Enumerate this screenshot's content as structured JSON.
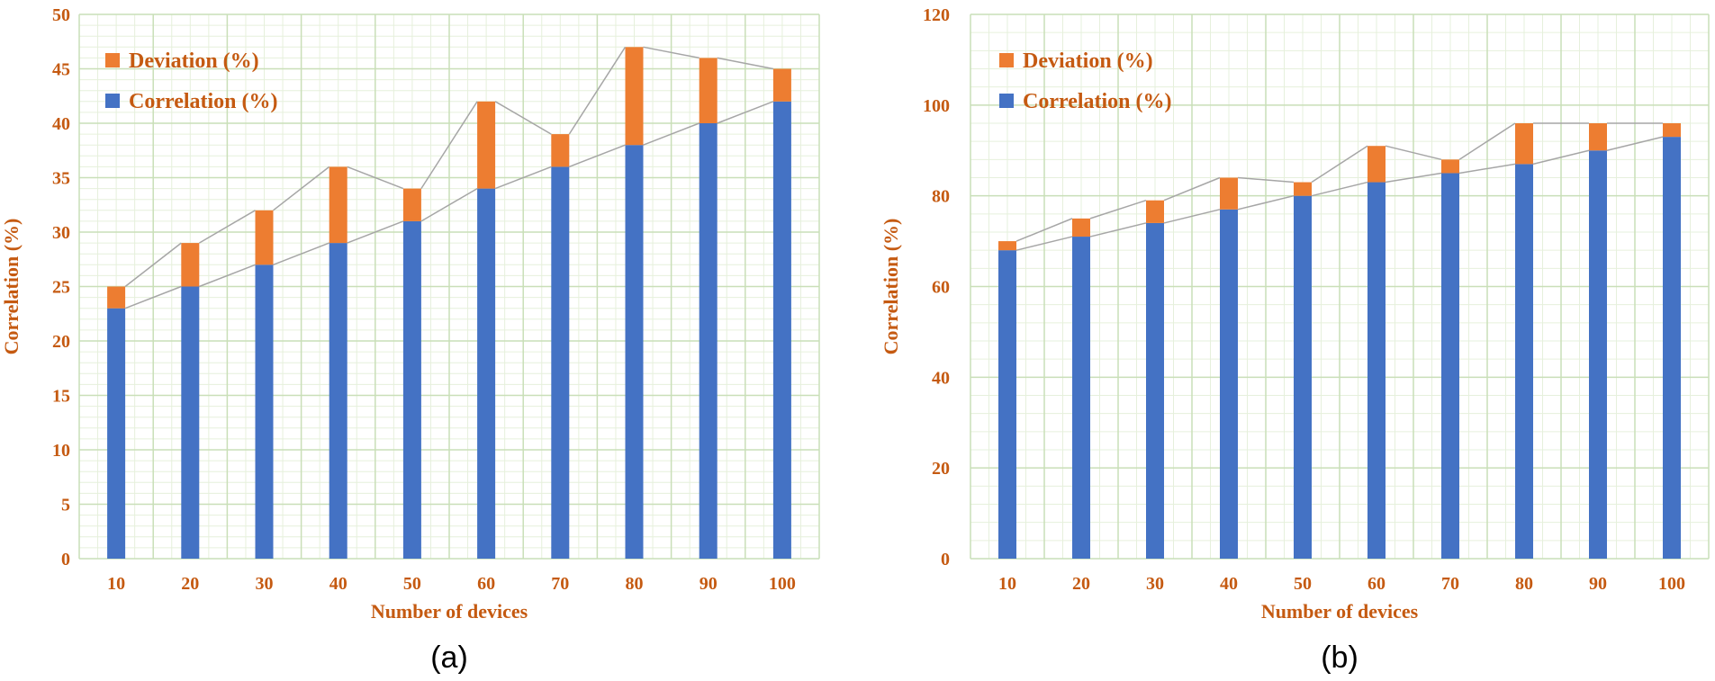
{
  "colors": {
    "deviation": "#ed7d31",
    "correlation": "#4472c4",
    "label": "#c55a11",
    "grid_major": "#c9dfb8",
    "grid_minor": "#e6f0dc",
    "connector": "#a6a6a6"
  },
  "chart_data": [
    {
      "type": "bar",
      "stacked": true,
      "panel_label": "(a)",
      "xlabel": "Number of devices",
      "ylabel": "Correlation (%)",
      "ylim": [
        0,
        50
      ],
      "yticks": [
        0,
        5,
        10,
        15,
        20,
        25,
        30,
        35,
        40,
        45,
        50
      ],
      "categories": [
        "10",
        "20",
        "30",
        "40",
        "50",
        "60",
        "70",
        "80",
        "90",
        "100"
      ],
      "legend_position": "top-left",
      "series": [
        {
          "name": "Correlation (%)",
          "values": [
            23,
            25,
            27,
            29,
            31,
            34,
            36,
            38,
            40,
            42
          ]
        },
        {
          "name": "Deviation (%)",
          "values": [
            2,
            4,
            5,
            7,
            3,
            8,
            3,
            9,
            6,
            3
          ]
        }
      ]
    },
    {
      "type": "bar",
      "stacked": true,
      "panel_label": "(b)",
      "xlabel": "Number of devices",
      "ylabel": "Correlation (%)",
      "ylim": [
        0,
        120
      ],
      "yticks": [
        0,
        20,
        40,
        60,
        80,
        100,
        120
      ],
      "categories": [
        "10",
        "20",
        "30",
        "40",
        "50",
        "60",
        "70",
        "80",
        "90",
        "100"
      ],
      "legend_position": "top-left",
      "series": [
        {
          "name": "Correlation (%)",
          "values": [
            68,
            71,
            74,
            77,
            80,
            83,
            85,
            87,
            90,
            93
          ]
        },
        {
          "name": "Deviation (%)",
          "values": [
            2,
            4,
            5,
            7,
            3,
            8,
            3,
            9,
            6,
            3
          ]
        }
      ]
    }
  ]
}
